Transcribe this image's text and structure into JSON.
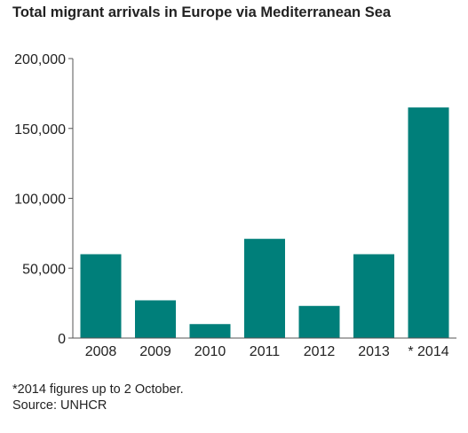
{
  "chart_data": {
    "type": "bar",
    "title": "Total migrant arrivals in Europe via Mediterranean Sea",
    "categories": [
      "2008",
      "2009",
      "2010",
      "2011",
      "2012",
      "2013",
      "* 2014"
    ],
    "values": [
      60000,
      27000,
      10000,
      71000,
      23000,
      60000,
      165000
    ],
    "ylim": [
      0,
      200000
    ],
    "yticks": [
      0,
      50000,
      100000,
      150000,
      200000
    ],
    "ytick_labels": [
      "0",
      "50,000",
      "100,000",
      "150,000",
      "200,000"
    ],
    "xlabel": "",
    "ylabel": "",
    "grid": false,
    "colors": {
      "bar": "#007f7a",
      "axis": "#555555"
    },
    "footnote": "*2014 figures up to 2 October.",
    "source": "Source: UNHCR"
  }
}
